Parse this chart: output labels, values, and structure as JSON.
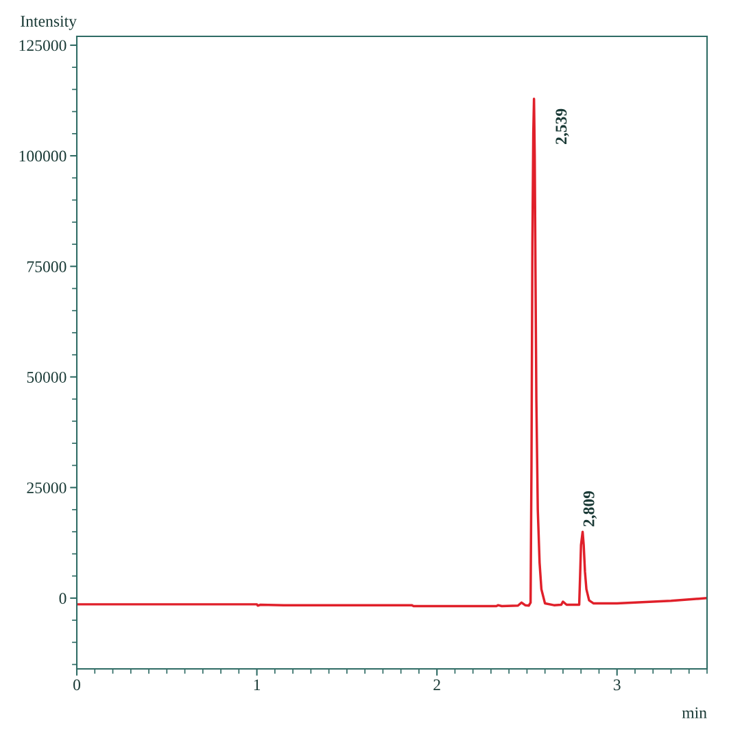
{
  "chart_data": {
    "type": "line",
    "xlabel": "min",
    "ylabel": "Intensity",
    "x": [
      0,
      1.0,
      1.005,
      1.02,
      1.15,
      1.86,
      1.87,
      2.33,
      2.34,
      2.36,
      2.45,
      2.47,
      2.49,
      2.51,
      2.52,
      2.525,
      2.53,
      2.535,
      2.539,
      2.543,
      2.547,
      2.552,
      2.56,
      2.57,
      2.58,
      2.6,
      2.65,
      2.69,
      2.7,
      2.72,
      2.79,
      2.795,
      2.8,
      2.809,
      2.815,
      2.822,
      2.83,
      2.845,
      2.87,
      3.0,
      3.1,
      3.2,
      3.3,
      3.4,
      3.5
    ],
    "series": [
      {
        "color": "#e0202a",
        "values": [
          -1400,
          -1400,
          -1700,
          -1500,
          -1600,
          -1600,
          -1800,
          -1800,
          -1600,
          -1800,
          -1700,
          -1000,
          -1600,
          -1700,
          -1000,
          30000,
          80000,
          105000,
          112900,
          100000,
          75000,
          45000,
          20000,
          8000,
          2000,
          -1200,
          -1600,
          -1500,
          -800,
          -1500,
          -1500,
          5000,
          12000,
          15000,
          12000,
          6000,
          2000,
          -500,
          -1200,
          -1200,
          -1000,
          -800,
          -600,
          -300,
          0
        ]
      }
    ],
    "annotations": [
      {
        "text": "2,539",
        "x": 2.539,
        "y": 112900
      },
      {
        "text": "2,809",
        "x": 2.809,
        "y": 15000
      }
    ],
    "xlim": [
      0,
      3.5
    ],
    "xticks": [
      0,
      1,
      2,
      3
    ],
    "ylim": [
      -16000,
      127000
    ],
    "yticks": [
      0,
      25000,
      50000,
      75000,
      100000,
      125000
    ],
    "grid": false,
    "legend": false,
    "marker": "none",
    "line_style": "solid"
  }
}
